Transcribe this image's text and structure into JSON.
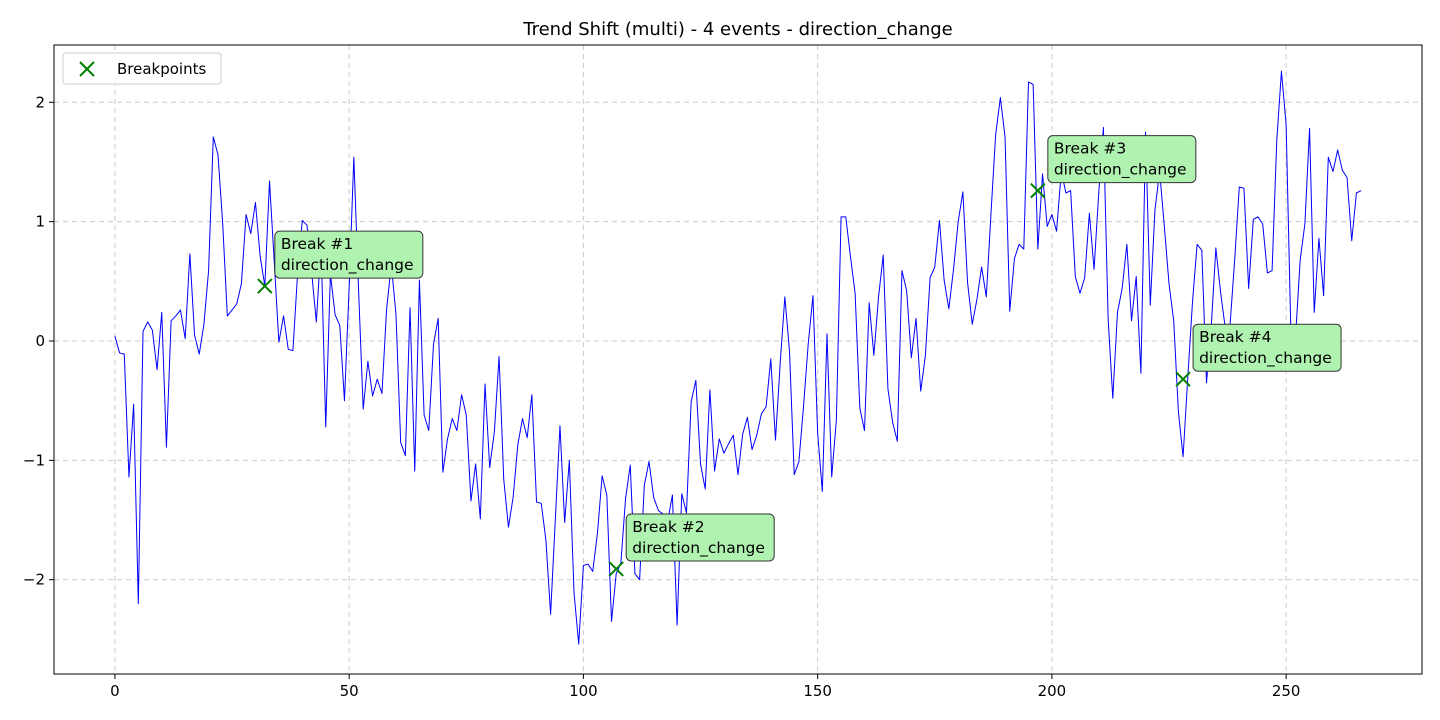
{
  "chart_data": {
    "type": "line",
    "title": "Trend Shift (multi) - 4 events - direction_change",
    "xlabel": "",
    "ylabel": "",
    "xlim": [
      -13,
      279
    ],
    "ylim": [
      -2.79,
      2.48
    ],
    "x_ticks": [
      0,
      50,
      100,
      150,
      200,
      250
    ],
    "y_ticks": [
      -2,
      -1,
      0,
      1,
      2
    ],
    "y_tick_labels": [
      "−2",
      "−1",
      "0",
      "1",
      "2"
    ],
    "grid": true,
    "line_color": "#0000ff",
    "series": [
      {
        "values": [
          0.04,
          -0.1,
          -0.11,
          -1.14,
          -0.53,
          -2.2,
          0.08,
          0.16,
          0.09,
          -0.24,
          0.24,
          -0.89,
          0.17,
          0.21,
          0.26,
          0.02,
          0.73,
          0.05,
          -0.11,
          0.14,
          0.59,
          1.71,
          1.56,
          0.99,
          0.21,
          0.26,
          0.31,
          0.48,
          1.06,
          0.9,
          1.16,
          0.71,
          0.46,
          1.34,
          0.67,
          -0.01,
          0.21,
          -0.07,
          -0.08,
          0.57,
          1.01,
          0.97,
          0.57,
          0.16,
          0.82,
          -0.72,
          0.56,
          0.22,
          0.13,
          -0.5,
          0.45,
          1.54,
          0.44,
          -0.57,
          -0.17,
          -0.46,
          -0.32,
          -0.44,
          0.27,
          0.64,
          0.22,
          -0.85,
          -0.96,
          0.28,
          -1.09,
          0.51,
          -0.62,
          -0.75,
          -0.03,
          0.19,
          -1.1,
          -0.82,
          -0.65,
          -0.75,
          -0.45,
          -0.62,
          -1.34,
          -1.03,
          -1.49,
          -0.36,
          -1.06,
          -0.76,
          -0.13,
          -1.16,
          -1.56,
          -1.31,
          -0.87,
          -0.65,
          -0.81,
          -0.45,
          -1.35,
          -1.36,
          -1.67,
          -2.29,
          -1.5,
          -0.71,
          -1.52,
          -1.0,
          -2.11,
          -2.54,
          -1.88,
          -1.87,
          -1.93,
          -1.61,
          -1.13,
          -1.29,
          -2.35,
          -1.95,
          -1.86,
          -1.32,
          -1.04,
          -1.95,
          -2.0,
          -1.21,
          -1.01,
          -1.31,
          -1.42,
          -1.45,
          -1.51,
          -1.29,
          -2.38,
          -1.28,
          -1.44,
          -0.51,
          -0.33,
          -1.03,
          -1.24,
          -0.41,
          -1.09,
          -0.82,
          -0.94,
          -0.86,
          -0.79,
          -1.12,
          -0.78,
          -0.64,
          -0.91,
          -0.79,
          -0.61,
          -0.55,
          -0.15,
          -0.83,
          -0.19,
          0.37,
          -0.09,
          -1.12,
          -1.01,
          -0.54,
          -0.02,
          0.38,
          -0.77,
          -1.26,
          0.06,
          -1.14,
          -0.66,
          1.04,
          1.04,
          0.71,
          0.4,
          -0.56,
          -0.75,
          0.32,
          -0.12,
          0.37,
          0.72,
          -0.4,
          -0.68,
          -0.84,
          0.59,
          0.42,
          -0.14,
          0.19,
          -0.42,
          -0.12,
          0.53,
          0.62,
          1.01,
          0.51,
          0.27,
          0.6,
          1.0,
          1.25,
          0.49,
          0.14,
          0.35,
          0.62,
          0.37,
          1.07,
          1.73,
          2.04,
          1.71,
          0.25,
          0.69,
          0.81,
          0.77,
          2.17,
          2.15,
          0.77,
          1.4,
          0.96,
          1.06,
          0.92,
          1.42,
          1.24,
          1.26,
          0.54,
          0.4,
          0.53,
          1.07,
          0.6,
          1.24,
          1.79,
          0.19,
          -0.48,
          0.24,
          0.44,
          0.81,
          0.17,
          0.54,
          -0.27,
          1.75,
          0.3,
          1.1,
          1.42,
          0.96,
          0.48,
          0.17,
          -0.59,
          -0.97,
          -0.31,
          0.32,
          0.81,
          0.76,
          -0.35,
          0.11,
          0.78,
          0.41,
          0.11,
          0.12,
          0.67,
          1.29,
          1.28,
          0.44,
          1.02,
          1.04,
          0.98,
          0.57,
          0.59,
          1.68,
          2.26,
          1.81,
          0.09,
          0.03,
          0.68,
          0.98,
          1.78,
          0.24,
          0.86,
          0.38,
          1.54,
          1.42,
          1.6,
          1.43,
          1.37,
          0.84,
          1.24,
          1.26
        ]
      }
    ],
    "breakpoints": {
      "legend_label": "Breakpoints",
      "marker_color": "#008000",
      "points": [
        {
          "x": 32,
          "y": 0.46,
          "label_line1": "Break #1",
          "label_line2": "direction_change"
        },
        {
          "x": 107,
          "y": -1.91,
          "label_line1": "Break #2",
          "label_line2": "direction_change"
        },
        {
          "x": 197,
          "y": 1.26,
          "label_line1": "Break #3",
          "label_line2": "direction_change"
        },
        {
          "x": 228,
          "y": -0.32,
          "label_line1": "Break #4",
          "label_line2": "direction_change"
        }
      ]
    },
    "annotation_box_color": "#b0f2b0",
    "legend_position": "top-left"
  }
}
